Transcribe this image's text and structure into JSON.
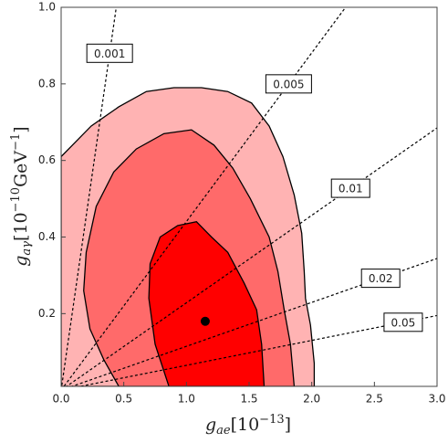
{
  "chart_data": {
    "type": "contour",
    "xlabel": {
      "symbol": "g",
      "sub": "ae",
      "text": "[10",
      "sup": "−13",
      "end": "]"
    },
    "ylabel": {
      "symbol": "g",
      "sub": "aγ",
      "text": "[10",
      "sup": "−10",
      "unit": "GeV",
      "sup2": "−1",
      "end": "]"
    },
    "xlim": [
      0,
      3
    ],
    "ylim": [
      0.01,
      1
    ],
    "xticks": [
      {
        "value": 0,
        "label": "0.0"
      },
      0.5,
      {
        "value": 1,
        "label": "1.0"
      },
      1.5,
      {
        "value": 2,
        "label": "2.0"
      },
      2.5,
      {
        "value": 3,
        "label": "3.0"
      }
    ],
    "yticks": [
      0.2,
      0.4,
      0.6,
      0.8,
      {
        "value": 1,
        "label": "1.0"
      }
    ],
    "regions": [
      {
        "color": "#ffb3b3",
        "x": [
          0,
          0.09,
          0.24,
          0.46,
          0.68,
          0.9,
          1.12,
          1.33,
          1.52,
          1.66,
          1.77,
          1.86,
          1.92,
          1.94,
          1.95,
          1.99,
          2.02,
          2.02,
          0
        ],
        "y": [
          0.61,
          0.64,
          0.69,
          0.74,
          0.78,
          0.79,
          0.79,
          0.78,
          0.75,
          0.69,
          0.61,
          0.51,
          0.41,
          0.31,
          0.24,
          0.17,
          0.07,
          0.01,
          0.01
        ]
      },
      {
        "color": "#ff6a6a",
        "x": [
          0.46,
          0.34,
          0.23,
          0.18,
          0.2,
          0.28,
          0.42,
          0.6,
          0.82,
          1.04,
          1.22,
          1.37,
          1.51,
          1.66,
          1.73,
          1.78,
          1.83,
          1.86
        ],
        "y": [
          0.01,
          0.08,
          0.16,
          0.26,
          0.36,
          0.48,
          0.57,
          0.63,
          0.67,
          0.68,
          0.64,
          0.58,
          0.5,
          0.4,
          0.31,
          0.21,
          0.12,
          0.01
        ]
      },
      {
        "color": "#ff0000",
        "x": [
          0.86,
          0.75,
          0.7,
          0.71,
          0.79,
          0.93,
          1.08,
          1.2,
          1.33,
          1.46,
          1.56,
          1.6,
          1.62
        ],
        "y": [
          0.01,
          0.12,
          0.24,
          0.33,
          0.4,
          0.43,
          0.44,
          0.4,
          0.36,
          0.28,
          0.21,
          0.12,
          0.01
        ]
      }
    ],
    "point": {
      "x": 1.15,
      "y": 0.18,
      "color": "#000000"
    },
    "lines": [
      {
        "label": "0.001",
        "x": [
          0,
          0.44
        ],
        "y": [
          0,
          1
        ]
      },
      {
        "label": "0.005",
        "x": [
          0,
          2.27
        ],
        "y": [
          0,
          1
        ]
      },
      {
        "label": "0.01",
        "x": [
          0,
          3
        ],
        "y": [
          0,
          0.685
        ]
      },
      {
        "label": "0.02",
        "x": [
          0,
          3
        ],
        "y": [
          0,
          0.344
        ]
      },
      {
        "label": "0.05",
        "x": [
          0,
          3
        ],
        "y": [
          0,
          0.195
        ]
      }
    ]
  }
}
